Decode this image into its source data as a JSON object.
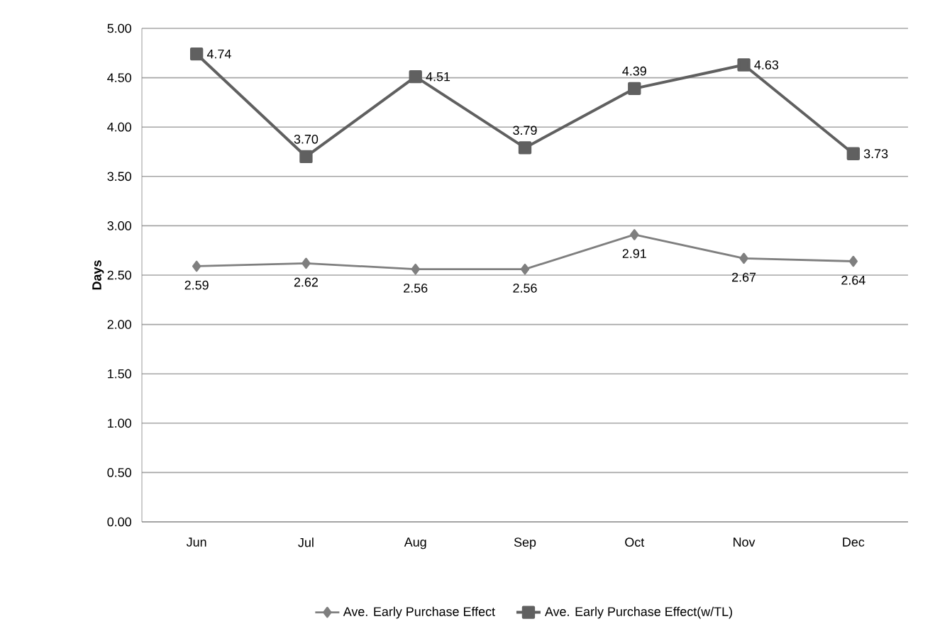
{
  "chart_data": {
    "type": "line",
    "ylabel": "Days",
    "categories": [
      "Jun",
      "Jul",
      "Aug",
      "Sep",
      "Oct",
      "Nov",
      "Dec"
    ],
    "series": [
      {
        "name": "Ave. Early Purchase Effect",
        "color": "#7f7f7f",
        "marker": "diamond",
        "values": [
          2.59,
          2.62,
          2.56,
          2.56,
          2.91,
          2.67,
          2.64
        ],
        "value_labels": [
          "2.59",
          "2.62",
          "2.56",
          "2.56",
          "2.91",
          "2.67",
          "2.64"
        ]
      },
      {
        "name": "Ave. Early Purchase Effect(w/TL)",
        "color": "#606060",
        "marker": "square",
        "values": [
          4.74,
          3.7,
          4.51,
          3.79,
          4.39,
          4.63,
          3.73
        ],
        "value_labels": [
          "4.74",
          "3.70",
          "4.51",
          "3.79",
          "4.39",
          "4.63",
          "3.73"
        ]
      }
    ],
    "ylim": [
      0,
      5
    ],
    "yticks": [
      {
        "value": 0,
        "label": "0.00"
      },
      {
        "value": 0.5,
        "label": "0.50"
      },
      {
        "value": 1,
        "label": "1.00"
      },
      {
        "value": 1.5,
        "label": "1.50"
      },
      {
        "value": 2,
        "label": "2.00"
      },
      {
        "value": 2.5,
        "label": "2.50"
      },
      {
        "value": 3,
        "label": "3.00"
      },
      {
        "value": 3.5,
        "label": "3.50"
      },
      {
        "value": 4,
        "label": "4.00"
      },
      {
        "value": 4.5,
        "label": "4.50"
      },
      {
        "value": 5,
        "label": "5.00"
      }
    ],
    "grid": "y",
    "legend": "bottom",
    "line_style": "solid"
  }
}
